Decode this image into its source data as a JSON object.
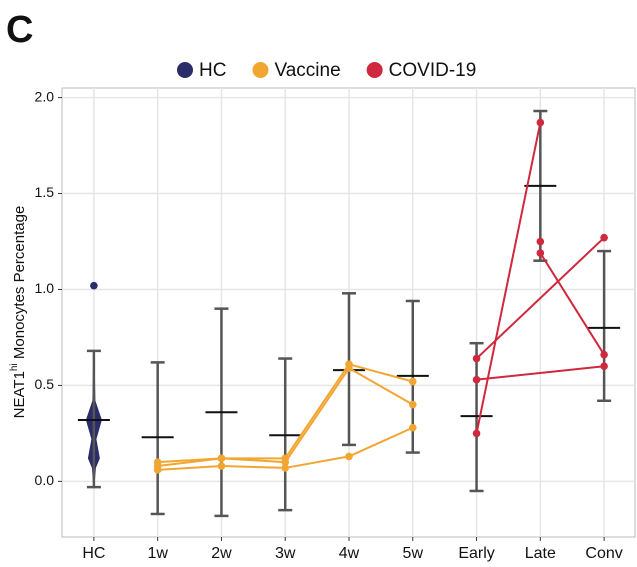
{
  "chart_data": {
    "type": "errorbar",
    "panel_label": "C",
    "ylabel": {
      "main": "NEAT1",
      "sup": "hi",
      "rest": " Monocytes Percentage"
    },
    "categories": [
      "HC",
      "1w",
      "2w",
      "3w",
      "4w",
      "5w",
      "Early",
      "Late",
      "Conv"
    ],
    "means": [
      0.32,
      0.23,
      0.36,
      0.24,
      0.58,
      0.55,
      0.34,
      1.54,
      0.8
    ],
    "err_low": [
      -0.03,
      -0.17,
      -0.18,
      -0.15,
      0.19,
      0.15,
      -0.05,
      1.15,
      0.42
    ],
    "err_high": [
      0.68,
      0.62,
      0.9,
      0.64,
      0.98,
      0.94,
      0.72,
      1.93,
      1.2
    ],
    "ylim": [
      -0.29,
      2.05
    ],
    "yticks": [
      {
        "value": 0,
        "label": "0.0"
      },
      {
        "value": 0.5,
        "label": "0.5"
      },
      {
        "value": 1,
        "label": "1.0"
      },
      {
        "value": 1.5,
        "label": "1.5"
      },
      {
        "value": 2,
        "label": "2.0"
      }
    ],
    "grid": true,
    "series": [
      {
        "name": "HC",
        "color": "#2b2d6a",
        "tracks": [
          {
            "categories": [
              "HC"
            ],
            "values": [
              1.02
            ]
          }
        ]
      },
      {
        "name": "Vaccine",
        "color": "#f2a632",
        "tracks": [
          {
            "categories": [
              "1w",
              "2w",
              "3w",
              "4w",
              "5w"
            ],
            "values": [
              0.1,
              0.12,
              0.12,
              0.61,
              0.52
            ]
          },
          {
            "categories": [
              "1w",
              "2w",
              "3w",
              "4w",
              "5w"
            ],
            "values": [
              0.08,
              0.12,
              0.1,
              0.59,
              0.4
            ]
          },
          {
            "categories": [
              "1w",
              "2w",
              "3w",
              "4w",
              "5w"
            ],
            "values": [
              0.06,
              0.08,
              0.07,
              0.13,
              0.28
            ]
          }
        ]
      },
      {
        "name": "COVID-19",
        "color": "#d0283c",
        "tracks": [
          {
            "categories": [
              "Early",
              "Late"
            ],
            "values": [
              0.25,
              1.87
            ]
          },
          {
            "categories": [
              "Early",
              "Conv"
            ],
            "values": [
              0.64,
              1.27
            ]
          },
          {
            "categories": [
              "Early",
              "Conv"
            ],
            "values": [
              0.53,
              0.6
            ]
          },
          {
            "categories": [
              "Late",
              "Conv"
            ],
            "values": [
              1.19,
              0.66
            ]
          },
          {
            "categories": [
              "Late"
            ],
            "values": [
              1.25
            ]
          }
        ]
      }
    ]
  }
}
